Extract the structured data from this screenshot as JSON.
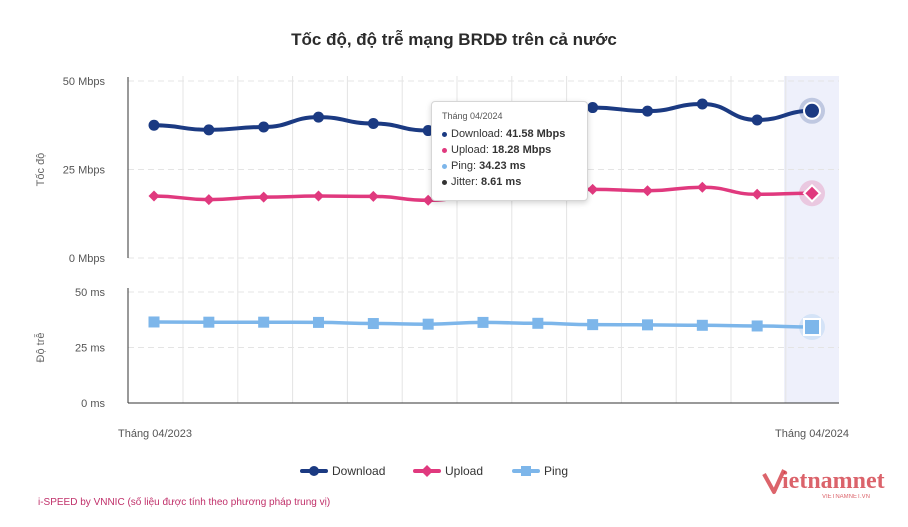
{
  "chart_data": {
    "type": "line",
    "title": "Tốc độ, độ trễ mạng BRDĐ trên cả nước",
    "x_categories": [
      "Tháng 04/2023",
      "",
      "",
      "",
      "",
      "",
      "",
      "",
      "",
      "",
      "",
      "",
      "Tháng 04/2024"
    ],
    "x_tick_labels": [
      "Tháng 04/2023",
      "Tháng 04/2024"
    ],
    "panels": [
      {
        "ylabel": "Tốc độ",
        "y_tick_labels": [
          "50 Mbps",
          "25 Mbps",
          "0 Mbps"
        ],
        "ylim": [
          0,
          50
        ],
        "series": [
          {
            "name": "Download",
            "color": "#1b3a82",
            "marker": "circle",
            "values": [
              37.5,
              36.2,
              37.0,
              39.8,
              38.0,
              36.0,
              37.8,
              40.8,
              42.5,
              41.5,
              43.5,
              39.0,
              41.58
            ]
          },
          {
            "name": "Upload",
            "color": "#e0397e",
            "marker": "diamond",
            "values": [
              17.5,
              16.5,
              17.2,
              17.5,
              17.4,
              16.3,
              17.8,
              19.0,
              19.4,
              19.0,
              20.0,
              18.0,
              18.28
            ]
          }
        ]
      },
      {
        "ylabel": "Độ trễ",
        "y_tick_labels": [
          "50 ms",
          "25 ms",
          "0 ms"
        ],
        "ylim": [
          0,
          50
        ],
        "series": [
          {
            "name": "Ping",
            "color": "#7db6ea",
            "marker": "square",
            "values": [
              36.5,
              36.4,
              36.4,
              36.3,
              35.8,
              35.5,
              36.3,
              35.9,
              35.3,
              35.2,
              35.0,
              34.7,
              34.23
            ]
          }
        ]
      }
    ],
    "highlight_category": "Tháng 04/2024",
    "grid": true
  },
  "tooltip": {
    "title": "Tháng 04/2024",
    "rows": [
      {
        "label": "Download: ",
        "value": "41.58 Mbps",
        "color": "#1b3a82"
      },
      {
        "label": "Upload: ",
        "value": "18.28 Mbps",
        "color": "#e0397e"
      },
      {
        "label": "Ping: ",
        "value": "34.23 ms",
        "color": "#7db6ea"
      },
      {
        "label": "Jitter: ",
        "value": "8.61 ms",
        "color": "#333333"
      }
    ]
  },
  "legend": [
    {
      "label": "Download",
      "color": "#1b3a82",
      "marker": "circle"
    },
    {
      "label": "Upload",
      "color": "#e0397e",
      "marker": "diamond"
    },
    {
      "label": "Ping",
      "color": "#7db6ea",
      "marker": "square"
    }
  ],
  "source_note": "i-SPEED by VNNIC (số liệu được tính theo phương pháp trung vị)",
  "logo": {
    "text": "ietnamnet",
    "subtext": "VIETNAMNET.VN",
    "color": "#d0303a"
  }
}
